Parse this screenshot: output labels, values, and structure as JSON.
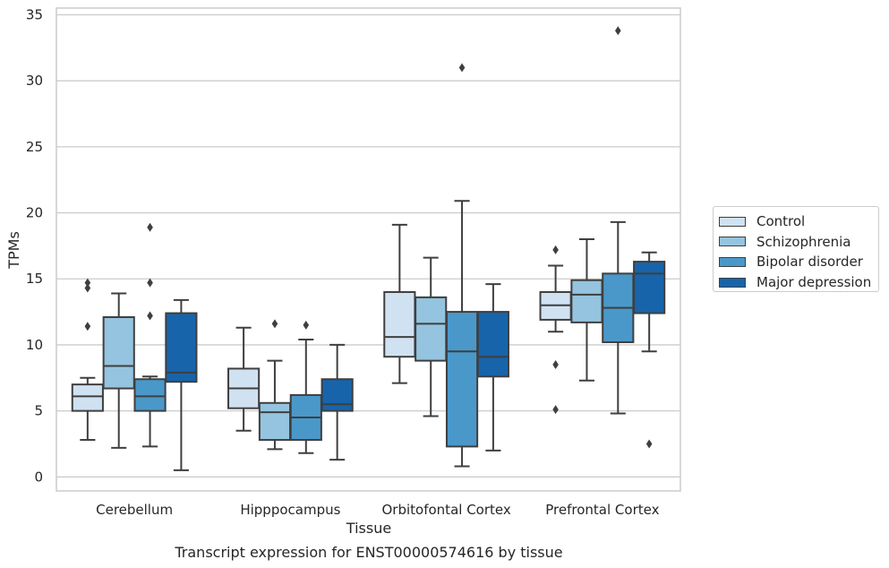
{
  "chart_data": {
    "type": "box",
    "title": "Transcript expression for ENST00000574616 by tissue",
    "xlabel": "Tissue",
    "ylabel": "TPMs",
    "ylim": [
      -1,
      35.6
    ],
    "yticks": [
      0,
      5,
      10,
      15,
      20,
      25,
      30,
      35
    ],
    "categories": [
      "Cerebellum",
      "Hipppocampus",
      "Orbitofontal Cortex",
      "Prefrontal Cortex"
    ],
    "legend_position": "right",
    "grid": "horizontal",
    "series": [
      {
        "name": "Control",
        "color": "#d0e1f2",
        "boxes": [
          {
            "whislo": 2.8,
            "q1": 5.0,
            "med": 6.1,
            "q3": 7.0,
            "whishi": 7.5,
            "fliers": [
              11.4,
              14.3,
              14.7
            ]
          },
          {
            "whislo": 3.5,
            "q1": 5.2,
            "med": 6.7,
            "q3": 8.2,
            "whishi": 11.3,
            "fliers": []
          },
          {
            "whislo": 7.1,
            "q1": 9.1,
            "med": 10.6,
            "q3": 14.0,
            "whishi": 19.1,
            "fliers": []
          },
          {
            "whislo": 11.0,
            "q1": 11.9,
            "med": 13.0,
            "q3": 14.0,
            "whishi": 16.0,
            "fliers": [
              5.1,
              8.5,
              17.2
            ]
          }
        ]
      },
      {
        "name": "Schizophrenia",
        "color": "#94c4df",
        "boxes": [
          {
            "whislo": 2.2,
            "q1": 6.7,
            "med": 8.4,
            "q3": 12.1,
            "whishi": 13.9,
            "fliers": []
          },
          {
            "whislo": 2.1,
            "q1": 2.8,
            "med": 4.9,
            "q3": 5.6,
            "whishi": 8.8,
            "fliers": [
              11.6
            ]
          },
          {
            "whislo": 4.6,
            "q1": 8.8,
            "med": 11.6,
            "q3": 13.6,
            "whishi": 16.6,
            "fliers": []
          },
          {
            "whislo": 7.3,
            "q1": 11.7,
            "med": 13.8,
            "q3": 14.9,
            "whishi": 18.0,
            "fliers": []
          }
        ]
      },
      {
        "name": "Bipolar disorder",
        "color": "#4a98c9",
        "boxes": [
          {
            "whislo": 2.3,
            "q1": 5.0,
            "med": 6.1,
            "q3": 7.4,
            "whishi": 7.6,
            "fliers": [
              12.2,
              14.7,
              18.9
            ]
          },
          {
            "whislo": 1.8,
            "q1": 2.8,
            "med": 4.5,
            "q3": 6.2,
            "whishi": 10.4,
            "fliers": [
              11.5
            ]
          },
          {
            "whislo": 0.8,
            "q1": 2.3,
            "med": 9.5,
            "q3": 12.5,
            "whishi": 20.9,
            "fliers": [
              31.0
            ]
          },
          {
            "whislo": 4.8,
            "q1": 10.2,
            "med": 12.8,
            "q3": 15.4,
            "whishi": 19.3,
            "fliers": [
              33.8
            ]
          }
        ]
      },
      {
        "name": "Major depression",
        "color": "#1764ab",
        "boxes": [
          {
            "whislo": 0.5,
            "q1": 7.2,
            "med": 7.9,
            "q3": 12.4,
            "whishi": 13.4,
            "fliers": []
          },
          {
            "whislo": 1.3,
            "q1": 5.0,
            "med": 5.5,
            "q3": 7.4,
            "whishi": 10.0,
            "fliers": []
          },
          {
            "whislo": 2.0,
            "q1": 7.6,
            "med": 9.1,
            "q3": 12.5,
            "whishi": 14.6,
            "fliers": []
          },
          {
            "whislo": 9.5,
            "q1": 12.4,
            "med": 15.4,
            "q3": 16.3,
            "whishi": 17.0,
            "fliers": [
              2.5
            ]
          }
        ]
      }
    ]
  }
}
